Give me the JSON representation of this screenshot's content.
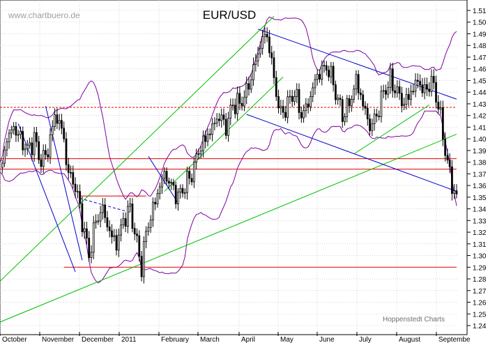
{
  "watermark": "www.chartbuero.de",
  "footer_credit": "Hoppenstedt Charts",
  "chart_data": {
    "type": "candlestick",
    "title": "EUR/USD",
    "ylim": [
      1.24,
      1.51
    ],
    "y_ticks": [
      1.51,
      1.5,
      1.49,
      1.48,
      1.47,
      1.46,
      1.45,
      1.44,
      1.43,
      1.42,
      1.41,
      1.4,
      1.39,
      1.38,
      1.37,
      1.36,
      1.35,
      1.34,
      1.33,
      1.32,
      1.31,
      1.3,
      1.29,
      1.28,
      1.27,
      1.26,
      1.25,
      1.24
    ],
    "x_labels": [
      "October",
      "November",
      "December",
      "2011",
      "February",
      "March",
      "April",
      "May",
      "June",
      "July",
      "August",
      "Septembe"
    ],
    "grid": true,
    "colors": {
      "candle": "#000000",
      "trend_up": "#00c000",
      "trend_down": "#0000c8",
      "horizontal": "#e00000",
      "band": "#8000a0",
      "grid": "#bbbbbb"
    },
    "close_path": [
      [
        0,
        1.37
      ],
      [
        3,
        1.4
      ],
      [
        6,
        1.41
      ],
      [
        9,
        1.4
      ],
      [
        12,
        1.39
      ],
      [
        15,
        1.4
      ],
      [
        18,
        1.38
      ],
      [
        21,
        1.39
      ],
      [
        24,
        1.42
      ],
      [
        27,
        1.41
      ],
      [
        30,
        1.37
      ],
      [
        33,
        1.36
      ],
      [
        36,
        1.33
      ],
      [
        39,
        1.3
      ],
      [
        42,
        1.33
      ],
      [
        45,
        1.34
      ],
      [
        48,
        1.32
      ],
      [
        51,
        1.31
      ],
      [
        54,
        1.33
      ],
      [
        57,
        1.34
      ],
      [
        60,
        1.31
      ],
      [
        62,
        1.29
      ],
      [
        64,
        1.32
      ],
      [
        67,
        1.34
      ],
      [
        70,
        1.36
      ],
      [
        72,
        1.37
      ],
      [
        75,
        1.36
      ],
      [
        78,
        1.35
      ],
      [
        81,
        1.36
      ],
      [
        84,
        1.37
      ],
      [
        87,
        1.39
      ],
      [
        90,
        1.4
      ],
      [
        93,
        1.41
      ],
      [
        96,
        1.42
      ],
      [
        99,
        1.41
      ],
      [
        102,
        1.43
      ],
      [
        105,
        1.43
      ],
      [
        108,
        1.44
      ],
      [
        111,
        1.46
      ],
      [
        114,
        1.48
      ],
      [
        116,
        1.49
      ],
      [
        118,
        1.48
      ],
      [
        120,
        1.45
      ],
      [
        123,
        1.42
      ],
      [
        126,
        1.43
      ],
      [
        129,
        1.44
      ],
      [
        132,
        1.42
      ],
      [
        135,
        1.43
      ],
      [
        138,
        1.45
      ],
      [
        141,
        1.46
      ],
      [
        144,
        1.46
      ],
      [
        147,
        1.44
      ],
      [
        150,
        1.42
      ],
      [
        153,
        1.43
      ],
      [
        156,
        1.45
      ],
      [
        159,
        1.43
      ],
      [
        162,
        1.41
      ],
      [
        165,
        1.42
      ],
      [
        168,
        1.44
      ],
      [
        171,
        1.45
      ],
      [
        174,
        1.44
      ],
      [
        177,
        1.43
      ],
      [
        180,
        1.44
      ],
      [
        183,
        1.45
      ],
      [
        186,
        1.44
      ],
      [
        189,
        1.45
      ],
      [
        192,
        1.43
      ],
      [
        195,
        1.39
      ],
      [
        198,
        1.36
      ],
      [
        200,
        1.35
      ]
    ],
    "lines": [
      {
        "name": "support-1.29",
        "kind": "horizontal",
        "y": 1.29,
        "from": 28,
        "to": 200
      },
      {
        "name": "support-1.375",
        "kind": "horizontal",
        "y": 1.374,
        "from": 0,
        "to": 200
      },
      {
        "name": "support-1.383",
        "kind": "horizontal",
        "y": 1.383,
        "from": 0,
        "to": 200
      },
      {
        "name": "level-1.35",
        "kind": "horizontal",
        "y": 1.351,
        "from": 35,
        "to": 64
      },
      {
        "name": "resistance-1.427",
        "kind": "horizontal-dashed",
        "y": 1.427,
        "from": 0,
        "to": 200
      },
      {
        "name": "long-uptrend",
        "kind": "trend-up",
        "points": [
          [
            0,
            1.243
          ],
          [
            200,
            1.404
          ]
        ]
      },
      {
        "name": "uptrend-outer",
        "kind": "trend-up",
        "points": [
          [
            0,
            1.278
          ],
          [
            120,
            1.505
          ]
        ]
      },
      {
        "name": "uptrend-inner",
        "kind": "trend-up",
        "points": [
          [
            72,
            1.355
          ],
          [
            124,
            1.453
          ]
        ]
      },
      {
        "name": "recent-uptrend",
        "kind": "trend-up",
        "points": [
          [
            155,
            1.387
          ],
          [
            188,
            1.429
          ]
        ]
      },
      {
        "name": "downtrend-upper",
        "kind": "trend-down",
        "points": [
          [
            113,
            1.494
          ],
          [
            200,
            1.434
          ]
        ]
      },
      {
        "name": "downtrend-lower",
        "kind": "trend-down",
        "points": [
          [
            108,
            1.421
          ],
          [
            200,
            1.355
          ]
        ]
      },
      {
        "name": "wedge-left",
        "kind": "trend-down",
        "points": [
          [
            8,
            1.413
          ],
          [
            33,
            1.286
          ]
        ]
      },
      {
        "name": "wedge-right",
        "kind": "trend-down",
        "points": [
          [
            20,
            1.428
          ],
          [
            36,
            1.296
          ]
        ]
      },
      {
        "name": "flag-upper",
        "kind": "trend-down-dashed",
        "points": [
          [
            35,
            1.349
          ],
          [
            57,
            1.337
          ]
        ]
      },
      {
        "name": "channel-feb",
        "kind": "trend-down",
        "points": [
          [
            65,
            1.385
          ],
          [
            78,
            1.345
          ]
        ]
      }
    ]
  }
}
